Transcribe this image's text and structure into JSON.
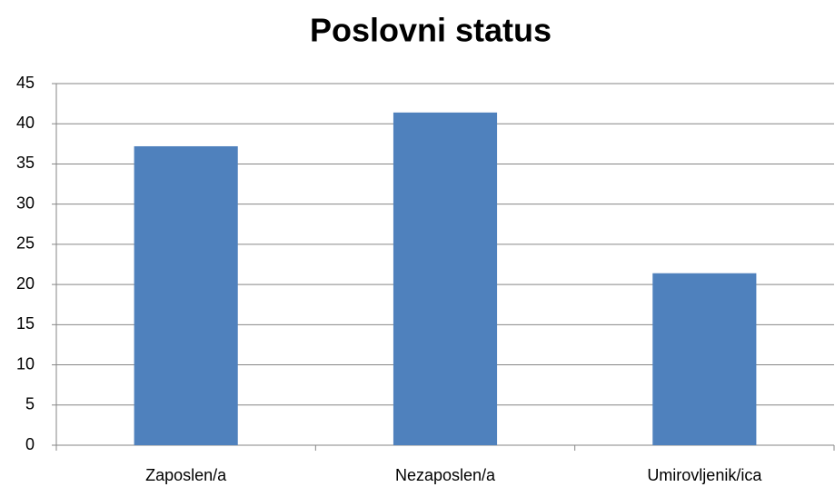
{
  "chart_data": {
    "type": "bar",
    "title": "Poslovni status",
    "categories": [
      "Zaposlen/a",
      "Nezaposlen/a",
      "Umirovljenik/ica"
    ],
    "values": [
      37.2,
      41.4,
      21.4
    ],
    "color": "#4f81bd",
    "ylim": [
      0,
      45
    ],
    "yticks": [
      0,
      5,
      10,
      15,
      20,
      25,
      30,
      35,
      40,
      45
    ],
    "grid": true
  }
}
